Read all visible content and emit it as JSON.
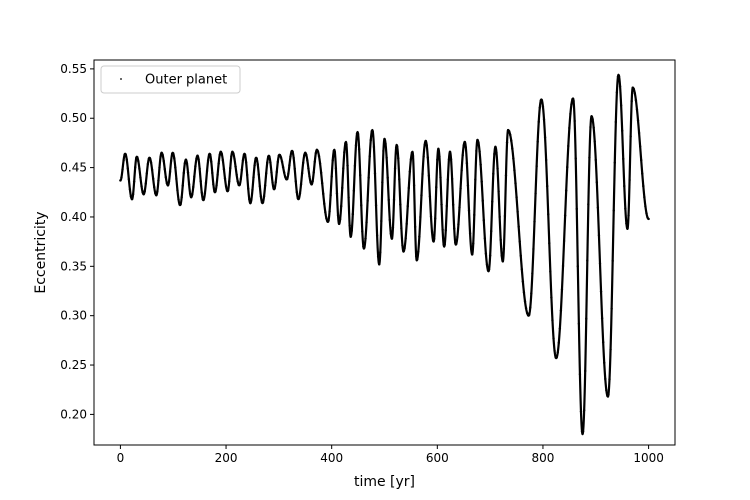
{
  "chart_data": {
    "type": "scatter",
    "title": "",
    "xlabel": "time [yr]",
    "ylabel": "Eccentricity",
    "xlim": [
      -50,
      1050
    ],
    "ylim": [
      0.169,
      0.559
    ],
    "xticks": [
      0,
      200,
      400,
      600,
      800,
      1000
    ],
    "yticks": [
      0.2,
      0.25,
      0.3,
      0.35,
      0.4,
      0.45,
      0.5,
      0.55
    ],
    "xtick_labels": [
      "0",
      "200",
      "400",
      "600",
      "800",
      "1000"
    ],
    "ytick_labels": [
      "0.20",
      "0.25",
      "0.30",
      "0.35",
      "0.40",
      "0.45",
      "0.50",
      "0.55"
    ],
    "grid": false,
    "legend": {
      "position": "upper-left",
      "entries": [
        "Outer planet"
      ]
    },
    "series": [
      {
        "name": "Outer planet",
        "color": "#000000",
        "marker": "dot",
        "oscillations": [
          {
            "t_min": 0,
            "t_max": 9,
            "e_min": 0.437,
            "e_max": 0.464
          },
          {
            "t_min": 22,
            "t_max": 31,
            "e_min": 0.418,
            "e_max": 0.461
          },
          {
            "t_min": 44,
            "t_max": 55,
            "e_min": 0.423,
            "e_max": 0.46
          },
          {
            "t_min": 68,
            "t_max": 78,
            "e_min": 0.422,
            "e_max": 0.465
          },
          {
            "t_min": 90,
            "t_max": 99,
            "e_min": 0.432,
            "e_max": 0.465
          },
          {
            "t_min": 113,
            "t_max": 124,
            "e_min": 0.412,
            "e_max": 0.458
          },
          {
            "t_min": 134,
            "t_max": 146,
            "e_min": 0.42,
            "e_max": 0.462
          },
          {
            "t_min": 157,
            "t_max": 169,
            "e_min": 0.417,
            "e_max": 0.464
          },
          {
            "t_min": 179,
            "t_max": 190,
            "e_min": 0.425,
            "e_max": 0.466
          },
          {
            "t_min": 203,
            "t_max": 212,
            "e_min": 0.426,
            "e_max": 0.466
          },
          {
            "t_min": 225,
            "t_max": 235,
            "e_min": 0.432,
            "e_max": 0.464
          },
          {
            "t_min": 246,
            "t_max": 257,
            "e_min": 0.414,
            "e_max": 0.46
          },
          {
            "t_min": 269,
            "t_max": 281,
            "e_min": 0.414,
            "e_max": 0.462
          },
          {
            "t_min": 291,
            "t_max": 301,
            "e_min": 0.428,
            "e_max": 0.463
          },
          {
            "t_min": 315,
            "t_max": 325,
            "e_min": 0.438,
            "e_max": 0.467
          },
          {
            "t_min": 337,
            "t_max": 350,
            "e_min": 0.418,
            "e_max": 0.465
          },
          {
            "t_min": 362,
            "t_max": 372,
            "e_min": 0.433,
            "e_max": 0.468
          },
          {
            "t_min": 393,
            "t_max": 405,
            "e_min": 0.395,
            "e_max": 0.468
          },
          {
            "t_min": 414,
            "t_max": 427,
            "e_min": 0.393,
            "e_max": 0.476
          },
          {
            "t_min": 436,
            "t_max": 449,
            "e_min": 0.38,
            "e_max": 0.486
          },
          {
            "t_min": 461,
            "t_max": 477,
            "e_min": 0.368,
            "e_max": 0.488
          },
          {
            "t_min": 490,
            "t_max": 500,
            "e_min": 0.352,
            "e_max": 0.479
          },
          {
            "t_min": 514,
            "t_max": 523,
            "e_min": 0.378,
            "e_max": 0.473
          },
          {
            "t_min": 536,
            "t_max": 553,
            "e_min": 0.365,
            "e_max": 0.466
          },
          {
            "t_min": 561,
            "t_max": 578,
            "e_min": 0.356,
            "e_max": 0.477
          },
          {
            "t_min": 593,
            "t_max": 602,
            "e_min": 0.375,
            "e_max": 0.469
          },
          {
            "t_min": 613,
            "t_max": 624,
            "e_min": 0.37,
            "e_max": 0.466
          },
          {
            "t_min": 635,
            "t_max": 652,
            "e_min": 0.372,
            "e_max": 0.476
          },
          {
            "t_min": 666,
            "t_max": 676,
            "e_min": 0.362,
            "e_max": 0.478
          },
          {
            "t_min": 697,
            "t_max": 710,
            "e_min": 0.345,
            "e_max": 0.471
          },
          {
            "t_min": 724,
            "t_max": 734,
            "e_min": 0.355,
            "e_max": 0.488
          },
          {
            "t_min": 773,
            "t_max": 797,
            "e_min": 0.3,
            "e_max": 0.519
          },
          {
            "t_min": 825,
            "t_max": 857,
            "e_min": 0.257,
            "e_max": 0.52
          },
          {
            "t_min": 875,
            "t_max": 892,
            "e_min": 0.18,
            "e_max": 0.502
          },
          {
            "t_min": 923,
            "t_max": 943,
            "e_min": 0.218,
            "e_max": 0.544
          },
          {
            "t_min": 960,
            "t_max": 970,
            "e_min": 0.388,
            "e_max": 0.531
          },
          {
            "t_min": 1000,
            "t_max": null,
            "e_min": 0.398,
            "e_max": null
          }
        ]
      }
    ]
  }
}
